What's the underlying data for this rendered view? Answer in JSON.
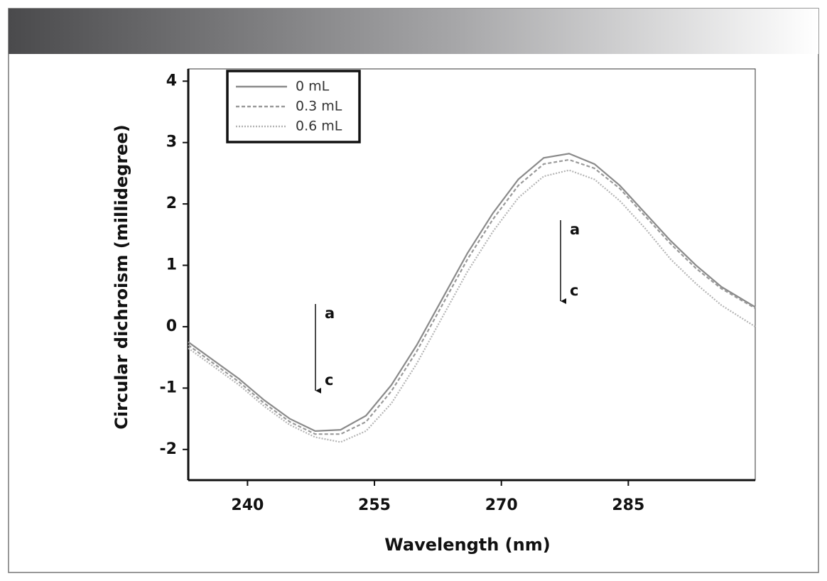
{
  "chart_data": {
    "type": "line",
    "x_label": "Wavelength (nm)",
    "y_label": "Circular dichroism (millidegree)",
    "x": [
      233,
      236,
      239,
      242,
      245,
      248,
      251,
      254,
      257,
      260,
      263,
      266,
      269,
      272,
      275,
      278,
      281,
      284,
      287,
      290,
      293,
      296,
      300
    ],
    "series": [
      {
        "name": "0 mL",
        "color": "#8a8a8a",
        "dash": "solid",
        "values": [
          -0.25,
          -0.55,
          -0.85,
          -1.2,
          -1.5,
          -1.7,
          -1.68,
          -1.45,
          -0.95,
          -0.3,
          0.45,
          1.2,
          1.85,
          2.4,
          2.75,
          2.82,
          2.65,
          2.3,
          1.85,
          1.4,
          1.0,
          0.65,
          0.32
        ]
      },
      {
        "name": "0.3 mL",
        "color": "#9a9a9a",
        "dash": "dashed",
        "values": [
          -0.3,
          -0.6,
          -0.9,
          -1.25,
          -1.55,
          -1.75,
          -1.75,
          -1.55,
          -1.05,
          -0.4,
          0.35,
          1.1,
          1.75,
          2.3,
          2.65,
          2.72,
          2.58,
          2.25,
          1.8,
          1.35,
          0.95,
          0.62,
          0.3
        ]
      },
      {
        "name": "0.6 mL",
        "color": "#b4b4b4",
        "dash": "dotted",
        "values": [
          -0.35,
          -0.65,
          -0.95,
          -1.3,
          -1.6,
          -1.8,
          -1.88,
          -1.7,
          -1.25,
          -0.6,
          0.15,
          0.9,
          1.55,
          2.1,
          2.45,
          2.55,
          2.4,
          2.05,
          1.6,
          1.1,
          0.7,
          0.35,
          0.0
        ]
      }
    ],
    "xlim": [
      233,
      300
    ],
    "xticks": [
      240,
      255,
      270,
      285
    ],
    "ylim": [
      -2.5,
      4.2
    ],
    "yticks": [
      4,
      3,
      2,
      1,
      0,
      -1,
      -2
    ],
    "grid": false,
    "legend": "upper left",
    "annotations": [
      "a",
      "c",
      "a",
      "c"
    ]
  }
}
